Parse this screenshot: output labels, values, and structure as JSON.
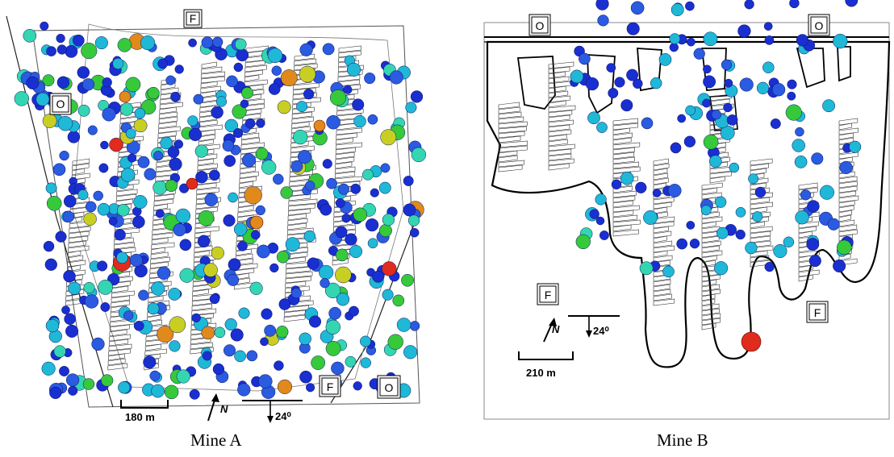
{
  "figure": {
    "mine_a": {
      "caption": "Mine A",
      "scale_label": "180 m",
      "dip_label": "24⁰",
      "north_label": "N",
      "region_labels": [
        "F",
        "O",
        "F",
        "O"
      ]
    },
    "mine_b": {
      "caption": "Mine B",
      "scale_label": "210 m",
      "dip_label": "24⁰",
      "north_label": "N",
      "region_labels": [
        "O",
        "O",
        "F",
        "F"
      ]
    },
    "event_colors": [
      "#1a2fd0",
      "#2a5be0",
      "#1fb8d6",
      "#33d6b0",
      "#36c93a",
      "#c9cf22",
      "#e08a1c",
      "#e02c1c"
    ]
  }
}
